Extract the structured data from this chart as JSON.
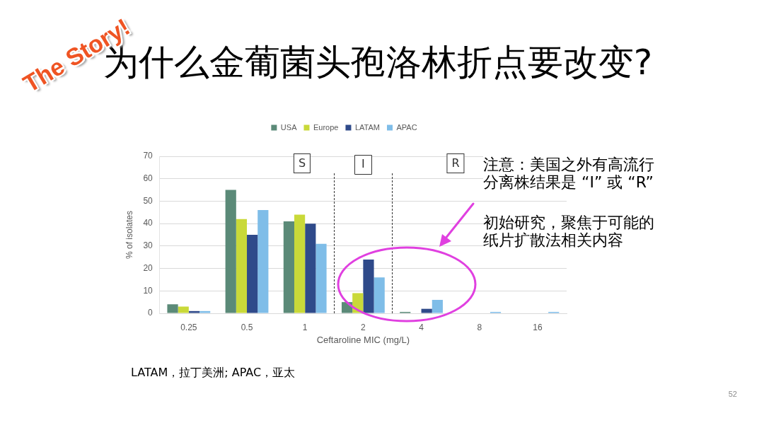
{
  "chart_data": {
    "type": "bar",
    "title": "为什么金葡菌头孢洛林折点要改变?",
    "xlabel": "Ceftaroline MIC (mg/L)",
    "ylabel": "% of isolates",
    "categories": [
      "0.25",
      "0.5",
      "1",
      "2",
      "4",
      "8",
      "16"
    ],
    "series": [
      {
        "name": "USA",
        "color": "#5b8a78",
        "values": [
          4,
          55,
          41,
          5,
          0,
          null,
          null
        ]
      },
      {
        "name": "Europe",
        "color": "#c9d939",
        "values": [
          3,
          42,
          44,
          9,
          null,
          null,
          null
        ]
      },
      {
        "name": "LATAM",
        "color": "#2f4a8a",
        "values": [
          1,
          35,
          40,
          24,
          2,
          null,
          null
        ]
      },
      {
        "name": "APAC",
        "color": "#7fbde8",
        "values": [
          1,
          46,
          31,
          16,
          6,
          0,
          0
        ]
      }
    ],
    "ylim": [
      0,
      70
    ],
    "yticks": [
      0,
      10,
      20,
      30,
      40,
      50,
      60,
      70
    ],
    "grid": "y",
    "legend": "top",
    "bands": [
      {
        "axis": "x",
        "from": "2",
        "to": "2",
        "label": "I"
      }
    ],
    "annotations": [
      "The Story!",
      "S",
      "R",
      "注意：美国之外有高流行分离株结果是 “I” 或 “R”",
      "初始研究，聚焦于可能的纸片扩散法相关内容",
      "LATAM，拉丁美洲; APAC，亚太",
      "52"
    ]
  }
}
